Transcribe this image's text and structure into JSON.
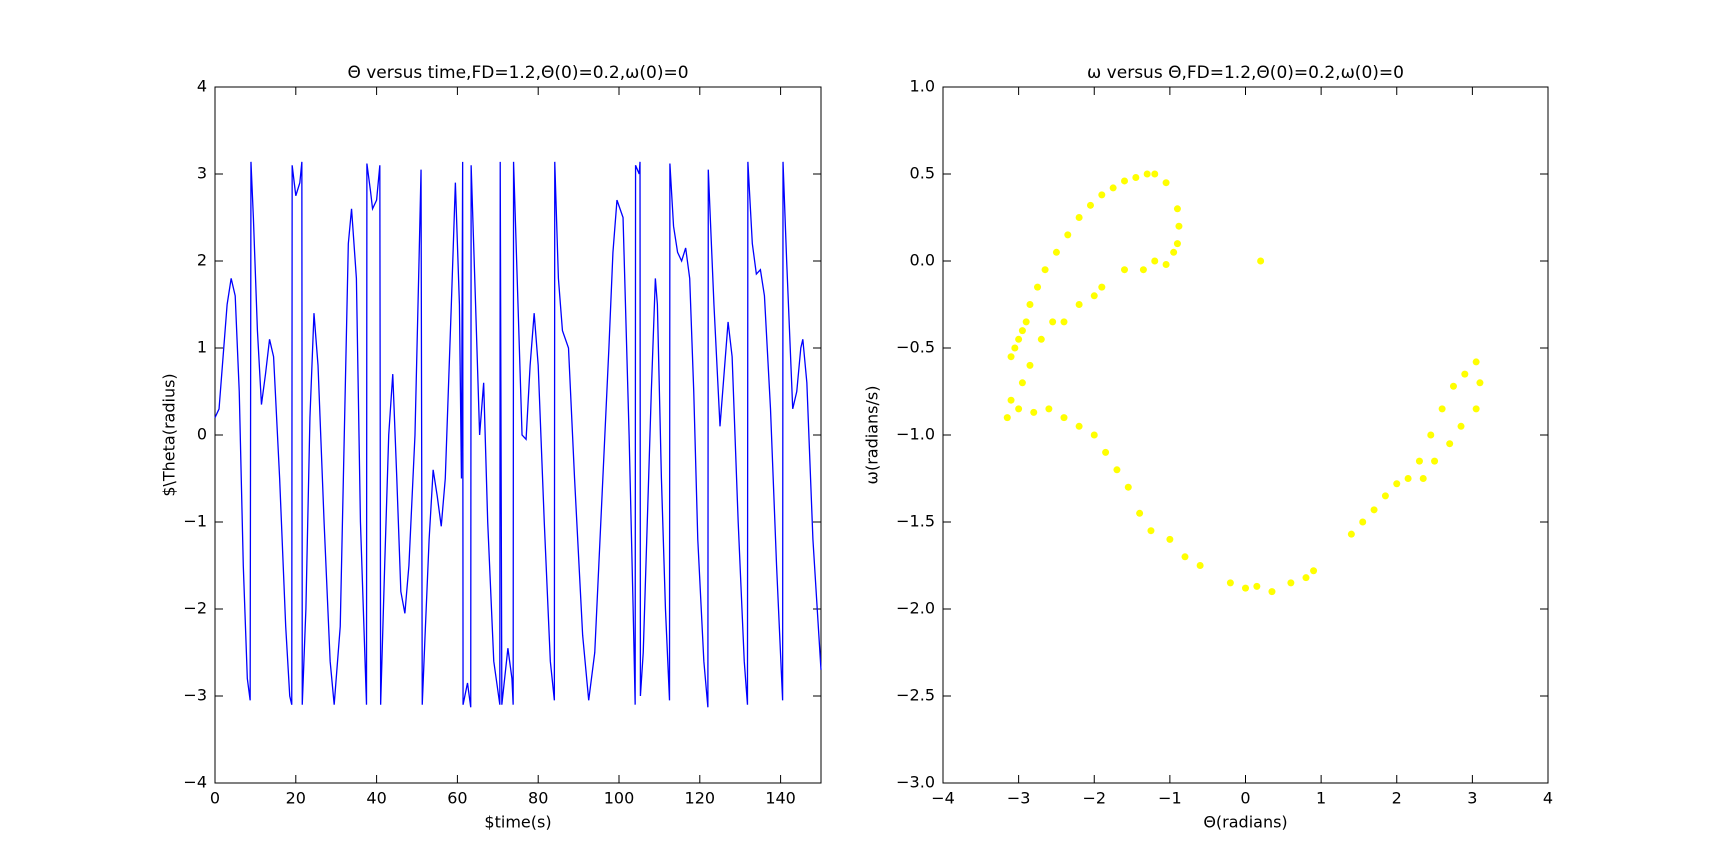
{
  "chart_data": [
    {
      "type": "line",
      "title": "Θ versus time,FD=1.2,Θ(0)=0.2,ω(0)=0",
      "x_label": "$time(s)",
      "y_label": "$\\Theta(radius)",
      "xlim": [
        0,
        150
      ],
      "ylim": [
        -4,
        4
      ],
      "xticks": [
        0,
        20,
        40,
        60,
        80,
        100,
        120,
        140
      ],
      "yticks": [
        {
          "value": -4,
          "label": "−4"
        },
        {
          "value": -3,
          "label": "−3"
        },
        {
          "value": -2,
          "label": "−2"
        },
        {
          "value": -1,
          "label": "−1"
        },
        0,
        1,
        2,
        3,
        4
      ],
      "series": [
        {
          "color": "#0000ff",
          "x": [
            0,
            1,
            2,
            3,
            4,
            5,
            6,
            7,
            8,
            8.7,
            8.9,
            9.5,
            10.5,
            11.5,
            12.5,
            13.5,
            14.5,
            16,
            17.5,
            18.5,
            19,
            19.1,
            20,
            21,
            21.5,
            21.6,
            22.5,
            23.5,
            24.5,
            25.5,
            27,
            28.5,
            29.5,
            31,
            32,
            33,
            33.8,
            35,
            36,
            37.5,
            37.6,
            38.5,
            39,
            40,
            40.8,
            41,
            42,
            43,
            44,
            45,
            46,
            47,
            48,
            49.5,
            50.5,
            51,
            51.3,
            52,
            53,
            54,
            55,
            56,
            57,
            58.5,
            59.5,
            60.5,
            61,
            61.3,
            61.4,
            62.5,
            63.3,
            63.4,
            64.5,
            65.5,
            66.5,
            67.5,
            69,
            70.5,
            70.6,
            71,
            72.5,
            73.5,
            73.8,
            73.9,
            75,
            76,
            77,
            78,
            79,
            80,
            81.5,
            83,
            84,
            84.1,
            85,
            86,
            87.5,
            89,
            91,
            92.5,
            94,
            96,
            97.5,
            98.5,
            99.5,
            101,
            102.5,
            103.5,
            104,
            104.1,
            105,
            105.2,
            105.3,
            106,
            107,
            108,
            109,
            109.5,
            110.5,
            111.5,
            112.5,
            112.6,
            113.5,
            114.5,
            115.5,
            116.5,
            117.5,
            118.5,
            119.5,
            121,
            122,
            122.1,
            123.5,
            125,
            126,
            127,
            128,
            129.5,
            131,
            131.8,
            131.9,
            133,
            134,
            135,
            136,
            137.5,
            139,
            140.5,
            140.6,
            141.5,
            143,
            144,
            145,
            145.5,
            146.5,
            148,
            150
          ],
          "values": [
            0.2,
            0.3,
            0.9,
            1.5,
            1.8,
            1.6,
            0.5,
            -1.5,
            -2.8,
            -3.05,
            3.14,
            2.5,
            1.2,
            0.35,
            0.7,
            1.1,
            0.9,
            -0.5,
            -2.2,
            -3.0,
            -3.1,
            3.1,
            2.75,
            2.9,
            3.14,
            -3.1,
            -2.0,
            0.2,
            1.4,
            0.8,
            -1.0,
            -2.6,
            -3.1,
            -2.2,
            0,
            2.2,
            2.6,
            1.8,
            -1.0,
            -3.1,
            3.12,
            2.8,
            2.6,
            2.7,
            3.1,
            -3.1,
            -1.5,
            0,
            0.7,
            -0.5,
            -1.8,
            -2.05,
            -1.5,
            0,
            2,
            3.05,
            -3.1,
            -2.3,
            -1.2,
            -0.4,
            -0.7,
            -1.05,
            -0.5,
            1.5,
            2.9,
            1.5,
            -0.5,
            3.14,
            -3.1,
            -2.85,
            -3.13,
            3.1,
            1.5,
            0,
            0.6,
            -1.0,
            -2.6,
            -3.1,
            3.14,
            -3.1,
            -2.45,
            -2.8,
            -3.1,
            3.14,
            1.5,
            0,
            -0.05,
            0.8,
            1.4,
            0.8,
            -1.0,
            -2.6,
            -3.05,
            3.14,
            1.8,
            1.2,
            1.0,
            -0.5,
            -2.3,
            -3.05,
            -2.5,
            -0.5,
            1.0,
            2.1,
            2.7,
            2.5,
            0,
            -2.0,
            -3.1,
            3.1,
            3.0,
            3.14,
            -3.0,
            -2.5,
            -1.0,
            0.5,
            1.8,
            1.5,
            -0.5,
            -2.0,
            -3.05,
            3.12,
            2.4,
            2.1,
            2.0,
            2.15,
            1.8,
            0.5,
            -1.2,
            -2.6,
            -3.13,
            3.05,
            1.5,
            0.1,
            0.7,
            1.3,
            0.9,
            -1.0,
            -2.6,
            -3.1,
            3.14,
            2.2,
            1.85,
            1.9,
            1.6,
            0.3,
            -1.5,
            -3.05,
            3.14,
            2.0,
            0.3,
            0.5,
            1.0,
            1.1,
            0.6,
            -1.2,
            -2.7
          ]
        }
      ]
    },
    {
      "type": "scatter",
      "title": "ω versus Θ,FD=1.2,Θ(0)=0.2,ω(0)=0",
      "x_label": "Θ(radians)",
      "y_label": "ω(radians/s)",
      "xlim": [
        -4,
        4
      ],
      "ylim": [
        -3,
        1
      ],
      "xticks": [
        {
          "value": -4,
          "label": "−4"
        },
        {
          "value": -3,
          "label": "−3"
        },
        {
          "value": -2,
          "label": "−2"
        },
        {
          "value": -1,
          "label": "−1"
        },
        0,
        1,
        2,
        3,
        4
      ],
      "yticks": [
        {
          "value": -3,
          "label": "−3.0"
        },
        {
          "value": -2.5,
          "label": "−2.5"
        },
        {
          "value": -2,
          "label": "−2.0"
        },
        {
          "value": -1.5,
          "label": "−1.5"
        },
        {
          "value": -1,
          "label": "−1.0"
        },
        {
          "value": -0.5,
          "label": "−0.5"
        },
        {
          "value": 0,
          "label": "0.0"
        },
        0.5,
        {
          "value": 1,
          "label": "1.0"
        }
      ],
      "series": [
        {
          "color": "#ffff00",
          "x": [
            -3.1,
            -3.05,
            -3.0,
            -2.95,
            -2.9,
            -2.85,
            -2.75,
            -2.65,
            -2.5,
            -2.35,
            -2.2,
            -2.05,
            -1.9,
            -1.75,
            -1.6,
            -1.45,
            -1.3,
            -1.2,
            -1.05,
            -0.9,
            -0.88,
            -0.9,
            -0.95,
            -1.05,
            -1.2,
            -1.35,
            -1.6,
            -1.9,
            -2.0,
            -2.2,
            -2.4,
            -2.55,
            -2.7,
            -2.85,
            -2.95,
            -3.1,
            -3.15,
            -3.0,
            -2.8,
            -2.6,
            -2.4,
            -2.2,
            -2.0,
            -1.85,
            -1.7,
            -1.55,
            -1.4,
            -1.25,
            -1.0,
            -0.8,
            -0.6,
            -0.2,
            0.0,
            0.15,
            0.35,
            0.6,
            0.8,
            0.9,
            1.4,
            1.55,
            1.7,
            1.85,
            2.0,
            2.15,
            2.3,
            2.45,
            2.6,
            2.75,
            2.9,
            3.05,
            3.1,
            3.05,
            2.85,
            2.7,
            2.5,
            2.35,
            0.2
          ],
          "values": [
            -0.55,
            -0.5,
            -0.45,
            -0.4,
            -0.35,
            -0.25,
            -0.15,
            -0.05,
            0.05,
            0.15,
            0.25,
            0.32,
            0.38,
            0.42,
            0.46,
            0.48,
            0.5,
            0.5,
            0.45,
            0.3,
            0.2,
            0.1,
            0.05,
            -0.02,
            0.0,
            -0.05,
            -0.05,
            -0.15,
            -0.2,
            -0.25,
            -0.35,
            -0.35,
            -0.45,
            -0.6,
            -0.7,
            -0.8,
            -0.9,
            -0.85,
            -0.87,
            -0.85,
            -0.9,
            -0.95,
            -1.0,
            -1.1,
            -1.2,
            -1.3,
            -1.45,
            -1.55,
            -1.6,
            -1.7,
            -1.75,
            -1.85,
            -1.88,
            -1.87,
            -1.9,
            -1.85,
            -1.82,
            -1.78,
            -1.57,
            -1.5,
            -1.43,
            -1.35,
            -1.28,
            -1.25,
            -1.15,
            -1.0,
            -0.85,
            -0.72,
            -0.65,
            -0.58,
            -0.7,
            -0.85,
            -0.95,
            -1.05,
            -1.15,
            -1.25,
            0.0
          ]
        }
      ]
    }
  ]
}
